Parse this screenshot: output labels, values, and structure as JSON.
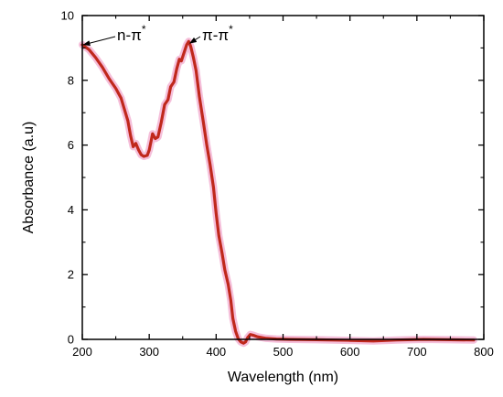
{
  "chart_data": {
    "type": "line",
    "title": "",
    "xlabel": "Wavelength (nm)",
    "ylabel": "Absorbance (a.u)",
    "xlim": [
      200,
      800
    ],
    "ylim": [
      0,
      10
    ],
    "x_ticks": [
      200,
      300,
      400,
      500,
      600,
      700,
      800
    ],
    "y_ticks": [
      0,
      2,
      4,
      6,
      8,
      10
    ],
    "grid": false,
    "legend": "none",
    "series": [
      {
        "color": "#c0281c",
        "halo_color": "#f4b8d6",
        "points": [
          [
            200,
            9.1
          ],
          [
            210,
            8.95
          ],
          [
            220,
            8.7
          ],
          [
            230,
            8.4
          ],
          [
            240,
            8.05
          ],
          [
            250,
            7.75
          ],
          [
            258,
            7.45
          ],
          [
            263,
            7.1
          ],
          [
            268,
            6.75
          ],
          [
            272,
            6.3
          ],
          [
            276,
            5.95
          ],
          [
            280,
            6.05
          ],
          [
            284,
            5.85
          ],
          [
            288,
            5.7
          ],
          [
            292,
            5.65
          ],
          [
            297,
            5.68
          ],
          [
            300,
            5.85
          ],
          [
            303,
            6.15
          ],
          [
            305,
            6.35
          ],
          [
            309,
            6.2
          ],
          [
            313,
            6.25
          ],
          [
            318,
            6.7
          ],
          [
            323,
            7.25
          ],
          [
            328,
            7.4
          ],
          [
            332,
            7.8
          ],
          [
            337,
            7.95
          ],
          [
            341,
            8.35
          ],
          [
            345,
            8.65
          ],
          [
            348,
            8.6
          ],
          [
            352,
            8.85
          ],
          [
            356,
            9.1
          ],
          [
            359,
            9.2
          ],
          [
            362,
            9.05
          ],
          [
            366,
            8.7
          ],
          [
            370,
            8.3
          ],
          [
            375,
            7.5
          ],
          [
            381,
            6.7
          ],
          [
            386,
            6.0
          ],
          [
            391,
            5.4
          ],
          [
            396,
            4.7
          ],
          [
            400,
            3.9
          ],
          [
            404,
            3.2
          ],
          [
            409,
            2.65
          ],
          [
            413,
            2.15
          ],
          [
            418,
            1.7
          ],
          [
            422,
            1.2
          ],
          [
            425,
            0.65
          ],
          [
            429,
            0.25
          ],
          [
            433,
            0.02
          ],
          [
            437,
            -0.08
          ],
          [
            441,
            -0.12
          ],
          [
            444,
            -0.08
          ],
          [
            447,
            0.05
          ],
          [
            451,
            0.15
          ],
          [
            455,
            0.13
          ],
          [
            462,
            0.08
          ],
          [
            475,
            0.03
          ],
          [
            490,
            0.01
          ],
          [
            510,
            0.0
          ],
          [
            550,
            -0.01
          ],
          [
            600,
            -0.03
          ],
          [
            635,
            -0.05
          ],
          [
            670,
            -0.02
          ],
          [
            710,
            0.0
          ],
          [
            750,
            -0.01
          ],
          [
            785,
            -0.02
          ]
        ]
      }
    ],
    "annotations": [
      {
        "text": "n-π",
        "sup": "*",
        "arrow_to": [
          202,
          9.1
        ]
      },
      {
        "text": "π-π",
        "sup": "*",
        "arrow_to": [
          361,
          9.15
        ]
      }
    ]
  }
}
